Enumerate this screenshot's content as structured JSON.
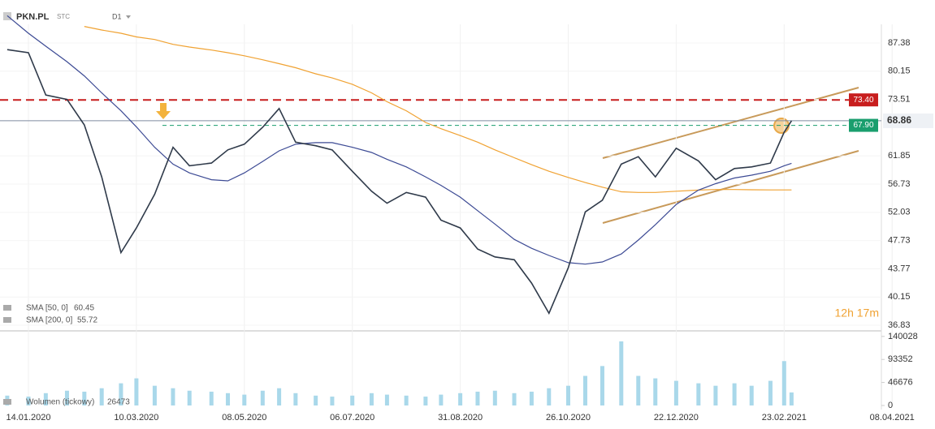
{
  "header": {
    "symbol": "PKN.PL",
    "exchange": "STC",
    "interval": "D1"
  },
  "chart_data": {
    "type": "line",
    "log_scale": true,
    "grid": true,
    "ylim": [
      36.2,
      92.5
    ],
    "yticks": [
      36.83,
      40.15,
      43.77,
      47.73,
      52.03,
      56.73,
      61.85,
      73.51,
      80.15,
      87.38
    ],
    "xticks": [
      "14.01.2020",
      "10.03.2020",
      "08.05.2020",
      "06.07.2020",
      "31.08.2020",
      "26.10.2020",
      "22.12.2020",
      "23.02.2021",
      "08.04.2021"
    ],
    "x": [
      "03.01.2020",
      "14.01.2020",
      "23.01.2020",
      "03.02.2020",
      "12.02.2020",
      "21.02.2020",
      "02.03.2020",
      "10.03.2020",
      "20.03.2020",
      "30.03.2020",
      "08.04.2020",
      "20.04.2020",
      "29.04.2020",
      "08.05.2020",
      "18.05.2020",
      "27.05.2020",
      "05.06.2020",
      "16.06.2020",
      "25.06.2020",
      "06.07.2020",
      "16.07.2020",
      "24.07.2020",
      "03.08.2020",
      "13.08.2020",
      "21.08.2020",
      "31.08.2020",
      "09.09.2020",
      "18.09.2020",
      "28.09.2020",
      "07.10.2020",
      "16.10.2020",
      "26.10.2020",
      "04.11.2020",
      "13.11.2020",
      "23.11.2020",
      "02.12.2020",
      "11.12.2020",
      "22.12.2020",
      "04.01.2021",
      "14.01.2021",
      "25.01.2021",
      "04.02.2021",
      "15.02.2021",
      "23.02.2021",
      "26.02.2021"
    ],
    "series": [
      {
        "name": "PKN.PL",
        "color": "#2f3a4a",
        "values": [
          85.6,
          84.8,
          74.5,
          73.5,
          68.0,
          58.0,
          46.0,
          49.6,
          55.0,
          63.5,
          60.0,
          60.5,
          63.0,
          64.1,
          67.5,
          71.5,
          64.5,
          63.8,
          63.0,
          59.0,
          55.5,
          53.5,
          55.3,
          54.5,
          50.8,
          49.6,
          46.5,
          45.4,
          45.0,
          41.9,
          38.2,
          43.9,
          52.1,
          54.0,
          60.3,
          61.7,
          58.0,
          63.3,
          60.9,
          57.5,
          59.5,
          59.8,
          60.5,
          66.5,
          68.86
        ]
      },
      {
        "name": "SMA [50, 0]",
        "color": "#3c4a94",
        "values": [
          95,
          90,
          86.5,
          82.5,
          79,
          75,
          71,
          67.6,
          63.5,
          60.3,
          58.7,
          57.5,
          57.3,
          58.7,
          60.8,
          62.8,
          64.1,
          64.4,
          64.4,
          63.5,
          62.5,
          61.2,
          59.8,
          58.0,
          56.5,
          54.5,
          52.3,
          50.2,
          47.9,
          46.6,
          45.6,
          44.6,
          44.4,
          44.7,
          45.8,
          47.8,
          50.1,
          53.3,
          55.7,
          56.8,
          57.8,
          58.3,
          59.0,
          60.0,
          60.45
        ]
      },
      {
        "name": "SMA [200, 0]",
        "color": "#f0a232",
        "values": [
          null,
          null,
          null,
          null,
          91.9,
          90.9,
          90,
          89.0,
          88.3,
          87.0,
          86.3,
          85.5,
          84.8,
          84.0,
          83.0,
          82.0,
          81.0,
          79.5,
          78.5,
          77.0,
          75.0,
          73.0,
          71.0,
          68.5,
          67.2,
          65.8,
          64.5,
          63.0,
          61.5,
          60.2,
          59.0,
          57.9,
          57.0,
          56.2,
          55.4,
          55.3,
          55.3,
          55.5,
          55.7,
          55.8,
          55.8,
          55.75,
          55.72,
          55.72,
          55.72
        ]
      }
    ],
    "levels": [
      {
        "value": 73.4,
        "label": "73.40",
        "color": "#c81e1e"
      },
      {
        "value": 67.9,
        "label": "67.90",
        "color": "#1a9e6e"
      }
    ],
    "last_price": 68.86,
    "volume": {
      "name": "Wolumen (tickowy)",
      "color": "#a9d8ea",
      "ylim": [
        0,
        148000
      ],
      "yticks": [
        0,
        46676,
        93352,
        140028
      ],
      "values": [
        20000,
        18000,
        25000,
        30000,
        28000,
        35000,
        45000,
        55000,
        40000,
        35000,
        30000,
        28000,
        25000,
        22000,
        30000,
        35000,
        25000,
        20000,
        18000,
        20000,
        25000,
        22000,
        20000,
        18000,
        22000,
        25000,
        28000,
        30000,
        25000,
        28000,
        35000,
        40000,
        60000,
        80000,
        130000,
        60000,
        55000,
        50000,
        45000,
        40000,
        45000,
        40000,
        50000,
        90000,
        26473
      ]
    },
    "timer": "12h 17m"
  }
}
